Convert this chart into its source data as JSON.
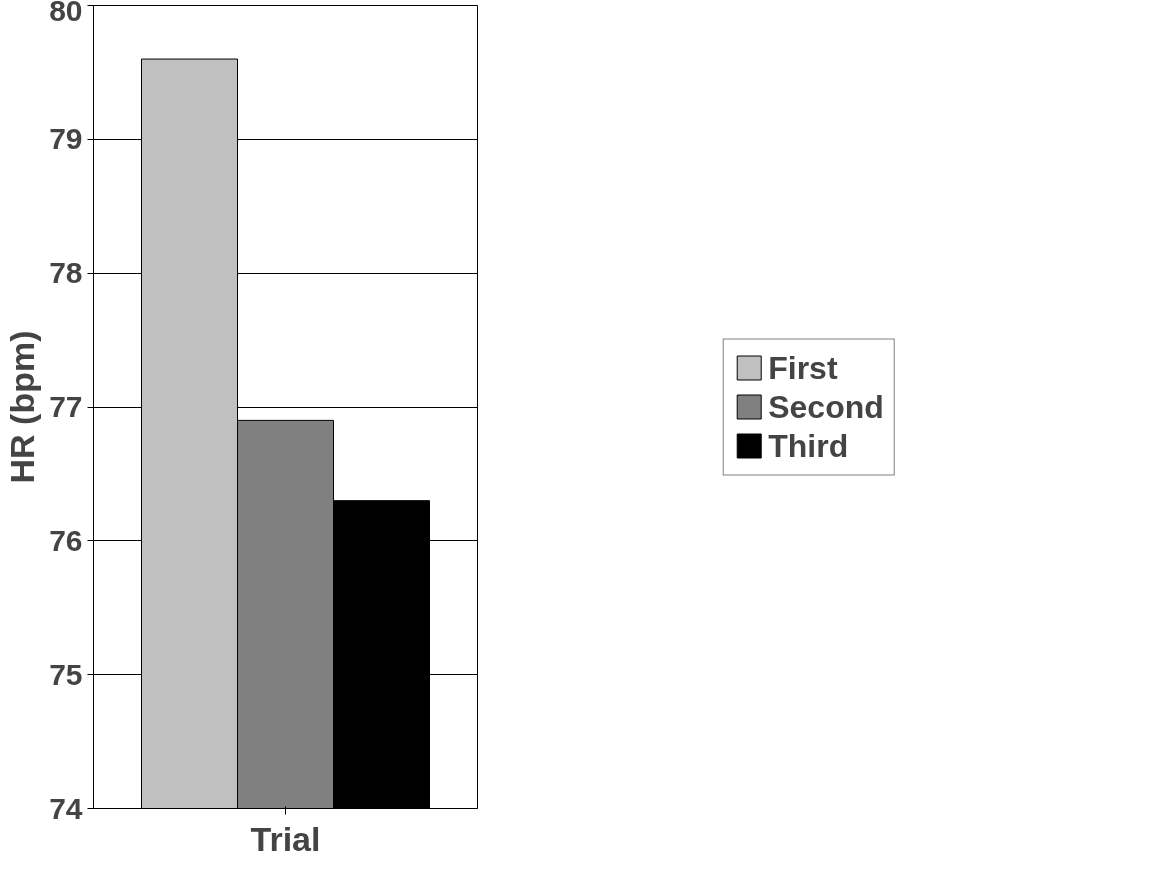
{
  "chart_data": {
    "type": "bar",
    "xlabel": "Trial",
    "ylabel": "HR (bpm)",
    "categories": [
      null
    ],
    "series": [
      {
        "name": "First",
        "color": "#c0c0c0",
        "values": [
          79.6
        ]
      },
      {
        "name": "Second",
        "color": "#808080",
        "values": [
          76.9
        ]
      },
      {
        "name": "Third",
        "color": "#000000",
        "values": [
          76.3
        ]
      }
    ],
    "ylim": [
      74,
      80
    ],
    "yticks": [
      74,
      75,
      76,
      77,
      78,
      79,
      80
    ],
    "grid": "y",
    "legend": "right"
  }
}
